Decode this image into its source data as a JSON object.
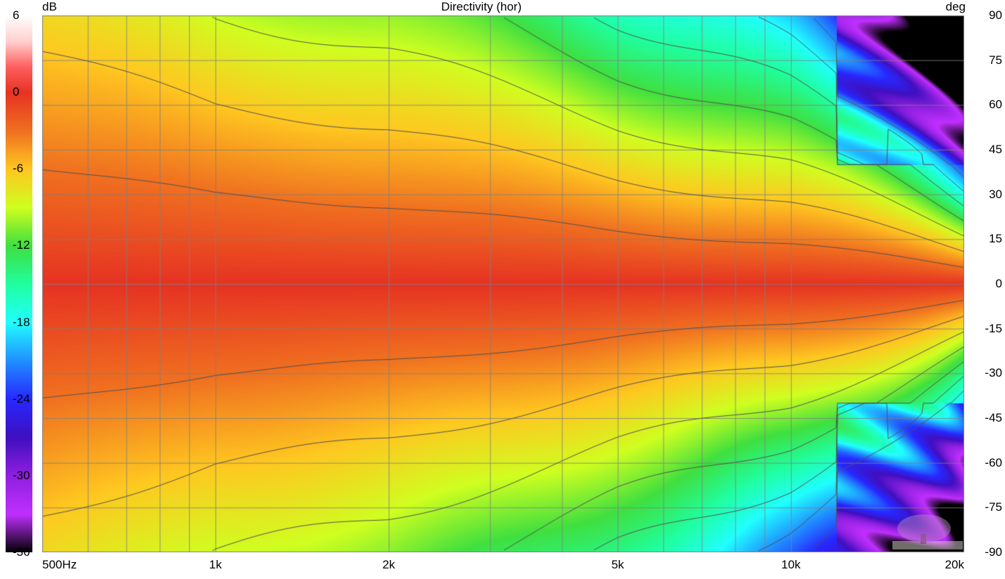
{
  "chart": {
    "type": "heatmap-contour",
    "title": "Directivity (hor)",
    "background_color": "#ffffff",
    "grid_color": "#808080",
    "title_fontsize": 17,
    "label_fontsize": 17,
    "x_axis": {
      "label_left": "500Hz",
      "scale": "log",
      "min_hz": 500,
      "max_hz": 20000,
      "ticks": [
        {
          "hz": 500,
          "label": "500Hz"
        },
        {
          "hz": 1000,
          "label": "1k"
        },
        {
          "hz": 2000,
          "label": "2k"
        },
        {
          "hz": 5000,
          "label": "5k"
        },
        {
          "hz": 10000,
          "label": "10k"
        },
        {
          "hz": 20000,
          "label": "20k"
        }
      ],
      "gridlines_hz": [
        600,
        700,
        800,
        900,
        1000,
        2000,
        3000,
        4000,
        5000,
        6000,
        7000,
        8000,
        9000,
        10000,
        20000
      ]
    },
    "y_axis": {
      "label": "deg",
      "min": -90,
      "max": 90,
      "step": 15,
      "ticks": [
        90,
        75,
        60,
        45,
        30,
        15,
        0,
        -15,
        -30,
        -45,
        -60,
        -75,
        -90
      ]
    },
    "colorbar": {
      "label": "dB",
      "min": -36,
      "max": 6,
      "ticks": [
        6,
        0,
        -6,
        -12,
        -18,
        -24,
        -30,
        -36
      ],
      "stops": [
        {
          "db": 6,
          "color": "#ffffff"
        },
        {
          "db": 4,
          "color": "#ffd0d0"
        },
        {
          "db": 2,
          "color": "#ff6060"
        },
        {
          "db": 0,
          "color": "#e63323"
        },
        {
          "db": -3,
          "color": "#f07020"
        },
        {
          "db": -6,
          "color": "#ffc820"
        },
        {
          "db": -9,
          "color": "#d0ff20"
        },
        {
          "db": -12,
          "color": "#40e040"
        },
        {
          "db": -15,
          "color": "#20ffa0"
        },
        {
          "db": -18,
          "color": "#20ffff"
        },
        {
          "db": -21,
          "color": "#2090ff"
        },
        {
          "db": -24,
          "color": "#2828ff"
        },
        {
          "db": -27,
          "color": "#4010c0"
        },
        {
          "db": -30,
          "color": "#9020e0"
        },
        {
          "db": -33,
          "color": "#c030ff"
        },
        {
          "db": -36,
          "color": "#000000"
        }
      ]
    },
    "contour_levels_db": [
      -3,
      -6,
      -9,
      -12,
      -15,
      -18,
      -21
    ],
    "contour_color": "#505050",
    "contour_width": 1,
    "field_envelope": {
      "comment": "Approx dB(freq_hz, angle_deg) modelled as narrowing beamwidth with frequency, roughly symmetric about 0deg. half_bw_deg = angle at -6dB.",
      "half_bw_at_500hz": 78,
      "half_bw_at_1k": 60,
      "half_bw_at_2k": 52,
      "half_bw_at_5k": 36,
      "half_bw_at_10k": 26,
      "half_bw_at_20k": 12,
      "rolloff_db_per_bw": -6,
      "ripple_amplitude_deg": 4,
      "ripple_freq_cycles": 8
    }
  }
}
